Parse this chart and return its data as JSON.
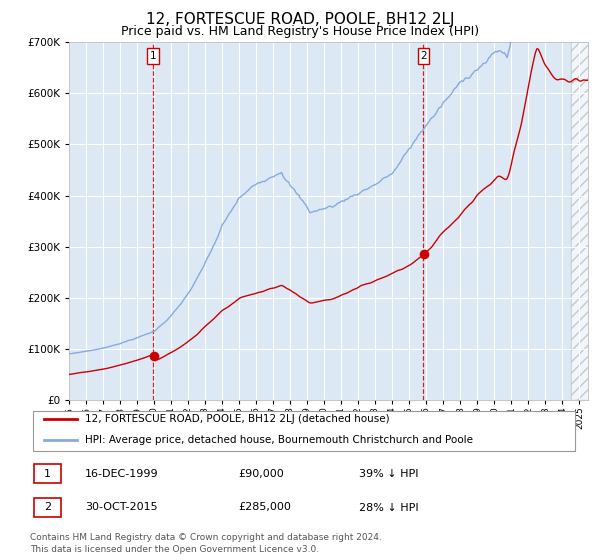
{
  "title": "12, FORTESCUE ROAD, POOLE, BH12 2LJ",
  "subtitle": "Price paid vs. HM Land Registry's House Price Index (HPI)",
  "title_fontsize": 11,
  "subtitle_fontsize": 9,
  "bg_color": "#dce9f5",
  "grid_color": "#ffffff",
  "red_color": "#cc0000",
  "blue_color": "#88aadd",
  "sale1_date": 1999.96,
  "sale1_price": 90000,
  "sale2_date": 2015.83,
  "sale2_price": 285000,
  "ylim": [
    0,
    700000
  ],
  "xlim": [
    1995.0,
    2025.5
  ],
  "legend1": "12, FORTESCUE ROAD, POOLE, BH12 2LJ (detached house)",
  "legend2": "HPI: Average price, detached house, Bournemouth Christchurch and Poole",
  "table_row1": [
    "1",
    "16-DEC-1999",
    "£90,000",
    "39% ↓ HPI"
  ],
  "table_row2": [
    "2",
    "30-OCT-2015",
    "£285,000",
    "28% ↓ HPI"
  ],
  "footer": "Contains HM Land Registry data © Crown copyright and database right 2024.\nThis data is licensed under the Open Government Licence v3.0."
}
